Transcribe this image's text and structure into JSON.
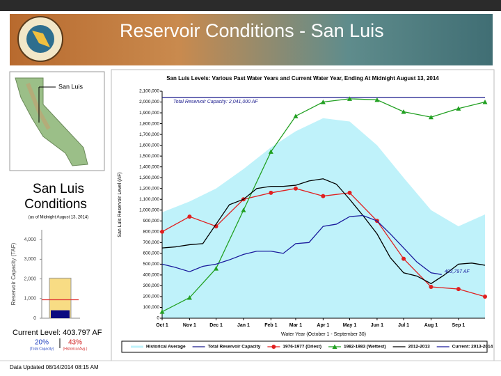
{
  "header": {
    "title": "Reservoir Conditions - San Luis"
  },
  "panel": {
    "map_label": "San Luis",
    "title_line1": "San Luis",
    "title_line2": "Conditions",
    "as_of": "(as of Midnight   August 13, 2014)",
    "current_level": "Current Level: 403.797 AF",
    "pct_total": "20%",
    "pct_total_label": "(Total Capacity)",
    "pct_hist": "43%",
    "pct_hist_label": "(Historical Avg.)"
  },
  "footer": {
    "updated": "Data Updated 08/14/2014 08:15 AM"
  },
  "chart_data": [
    {
      "type": "line",
      "title": "San Luis Levels: Various Past Water Years and Current Water Year, Ending At Midnight August 13, 2014",
      "y_label": "San Luis Reservoir Level (AF)",
      "x_label": "Water Year (October 1 - September 30)",
      "xlim": [
        0,
        365
      ],
      "xticks": [
        {
          "value": 0,
          "label": "Oct 1"
        },
        {
          "value": 31,
          "label": "Nov 1"
        },
        {
          "value": 61,
          "label": "Dec 1"
        },
        {
          "value": 92,
          "label": "Jan 1"
        },
        {
          "value": 123,
          "label": "Feb 1"
        },
        {
          "value": 151,
          "label": "Mar 1"
        },
        {
          "value": 182,
          "label": "Apr 1"
        },
        {
          "value": 212,
          "label": "May 1"
        },
        {
          "value": 243,
          "label": "Jun 1"
        },
        {
          "value": 273,
          "label": "Jul 1"
        },
        {
          "value": 304,
          "label": "Aug 1"
        },
        {
          "value": 335,
          "label": "Sep 1"
        }
      ],
      "ylim": [
        0,
        2100000
      ],
      "yticks": [
        0,
        {
          "value": 100000,
          "label": "100,000"
        },
        {
          "value": 200000,
          "label": "200,000"
        },
        {
          "value": 300000,
          "label": "300,000"
        },
        {
          "value": 400000,
          "label": "400,000"
        },
        {
          "value": 500000,
          "label": "500,000"
        },
        {
          "value": 600000,
          "label": "600,000"
        },
        {
          "value": 700000,
          "label": "700,000"
        },
        {
          "value": 800000,
          "label": "800,000"
        },
        {
          "value": 900000,
          "label": "900,000"
        },
        {
          "value": 1000000,
          "label": "1,000,000"
        },
        {
          "value": 1100000,
          "label": "1,100,000"
        },
        {
          "value": 1200000,
          "label": "1,200,000"
        },
        {
          "value": 1300000,
          "label": "1,300,000"
        },
        {
          "value": 1400000,
          "label": "1,400,000"
        },
        {
          "value": 1500000,
          "label": "1,500,000"
        },
        {
          "value": 1600000,
          "label": "1,600,000"
        },
        {
          "value": 1700000,
          "label": "1,700,000"
        },
        {
          "value": 1800000,
          "label": "1,800,000"
        },
        {
          "value": 1900000,
          "label": "1,900,000"
        },
        {
          "value": 2000000,
          "label": "2,000,000"
        },
        {
          "value": 2100000,
          "label": "2,100,000"
        }
      ],
      "grid": false,
      "legend": "bottom",
      "series": [
        {
          "name": "Historical Average",
          "color": "#bff2fa",
          "style": "area",
          "marker": null,
          "x": [
            0,
            31,
            61,
            92,
            123,
            151,
            182,
            212,
            243,
            273,
            304,
            335,
            365
          ],
          "values": [
            980000,
            1080000,
            1200000,
            1380000,
            1580000,
            1730000,
            1850000,
            1820000,
            1600000,
            1300000,
            1000000,
            850000,
            960000
          ]
        },
        {
          "name": "Total Reservoir Capacity",
          "color": "#1a1a8c",
          "style": "line",
          "marker": null,
          "x": [
            0,
            365
          ],
          "values": [
            2041000,
            2041000
          ]
        },
        {
          "name": "1976-1977 (Driest)",
          "color": "#e02020",
          "style": "line",
          "marker": "circle",
          "x": [
            0,
            31,
            61,
            92,
            123,
            151,
            182,
            212,
            243,
            273,
            304,
            335,
            365
          ],
          "values": [
            800000,
            940000,
            850000,
            1100000,
            1160000,
            1200000,
            1130000,
            1160000,
            900000,
            550000,
            290000,
            270000,
            200000
          ]
        },
        {
          "name": "1982-1983 (Wettest)",
          "color": "#22a022",
          "style": "line",
          "marker": "triangle",
          "x": [
            0,
            31,
            61,
            92,
            123,
            151,
            182,
            212,
            243,
            273,
            304,
            335,
            365
          ],
          "values": [
            60000,
            190000,
            460000,
            1000000,
            1540000,
            1870000,
            2000000,
            2030000,
            2020000,
            1910000,
            1860000,
            1940000,
            2000000
          ]
        },
        {
          "name": "2012-2013",
          "color": "#000000",
          "style": "line",
          "marker": null,
          "x": [
            0,
            15,
            31,
            46,
            61,
            76,
            92,
            107,
            123,
            137,
            151,
            166,
            182,
            197,
            212,
            227,
            243,
            258,
            273,
            288,
            304,
            319,
            335,
            350,
            365
          ],
          "values": [
            650000,
            660000,
            680000,
            690000,
            870000,
            1050000,
            1100000,
            1200000,
            1220000,
            1220000,
            1230000,
            1270000,
            1290000,
            1240000,
            1100000,
            950000,
            780000,
            560000,
            420000,
            390000,
            320000,
            400000,
            500000,
            510000,
            490000
          ]
        },
        {
          "name": "Current: 2013-2014",
          "color": "#1a1a9c",
          "style": "line",
          "marker": null,
          "x": [
            0,
            15,
            31,
            46,
            61,
            76,
            92,
            107,
            123,
            137,
            151,
            166,
            182,
            197,
            212,
            227,
            243,
            258,
            273,
            288,
            304,
            316
          ],
          "values": [
            500000,
            470000,
            430000,
            480000,
            500000,
            540000,
            590000,
            620000,
            620000,
            600000,
            690000,
            700000,
            850000,
            870000,
            940000,
            950000,
            900000,
            780000,
            650000,
            520000,
            420000,
            403797
          ]
        }
      ],
      "annotations": [
        {
          "text": "Total Reservoir Capacity: 2,041,000 AF",
          "color": "#1a1a8c"
        },
        {
          "text": "403,797 AF",
          "color": "#1a1a9c"
        }
      ]
    },
    {
      "type": "level",
      "y_label": "Reservoir Capacity (TAF)",
      "ylim": [
        0,
        4500
      ],
      "yticks": [
        0,
        {
          "value": 1000,
          "label": "1,000"
        },
        {
          "value": 2000,
          "label": "2,000"
        },
        {
          "value": 3000,
          "label": "3,000"
        },
        {
          "value": 4000,
          "label": "4,000"
        }
      ],
      "capacity": 2041,
      "current": 403.797,
      "historical_avg": 939,
      "capacity_color": "#f8dc84",
      "current_color": "#0a0a80",
      "historical_color": "#e03030"
    }
  ]
}
